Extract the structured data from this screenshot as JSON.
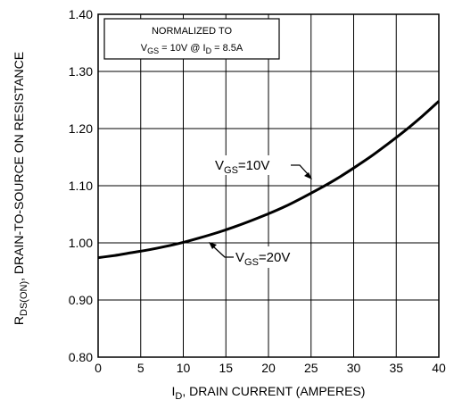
{
  "chart_data": {
    "type": "line",
    "title": "",
    "xlabel": {
      "main": "I",
      "sub": "D",
      "rest": ", DRAIN CURRENT (AMPERES)"
    },
    "ylabel": {
      "main": "R",
      "sub": "DS(ON)",
      "rest": ", DRAIN-TO-SOURCE ON RESISTANCE"
    },
    "xlim": [
      0,
      40
    ],
    "ylim": [
      0.8,
      1.4
    ],
    "x_ticks": [
      "0",
      "5",
      "10",
      "15",
      "20",
      "25",
      "30",
      "35",
      "40"
    ],
    "y_ticks": [
      "0.80",
      "0.90",
      "1.00",
      "1.10",
      "1.20",
      "1.30",
      "1.40"
    ],
    "grid": true,
    "series": [
      {
        "x": [
          0,
          2,
          4,
          6,
          8,
          10,
          12,
          14,
          16,
          18,
          20,
          22,
          24,
          26,
          28,
          30,
          32,
          34,
          36,
          38,
          40
        ],
        "values": [
          0.974,
          0.978,
          0.983,
          0.988,
          0.994,
          1.001,
          1.009,
          1.018,
          1.028,
          1.039,
          1.051,
          1.064,
          1.079,
          1.095,
          1.112,
          1.131,
          1.151,
          1.173,
          1.196,
          1.221,
          1.248
        ]
      }
    ],
    "normalization_box": {
      "line1": "NORMALIZED TO",
      "vgs_main": "V",
      "vgs_sub": "GS",
      "vgs_rest": " = 10V  @  I",
      "id_sub": "D",
      "id_rest": " = 8.5A"
    },
    "annotations": [
      {
        "main": "V",
        "sub": "GS",
        "rest": "=10V",
        "x": 26,
        "y": 1.1
      },
      {
        "main": "V",
        "sub": "GS",
        "rest": "=20V",
        "x": 12,
        "y": 1.01
      }
    ]
  }
}
